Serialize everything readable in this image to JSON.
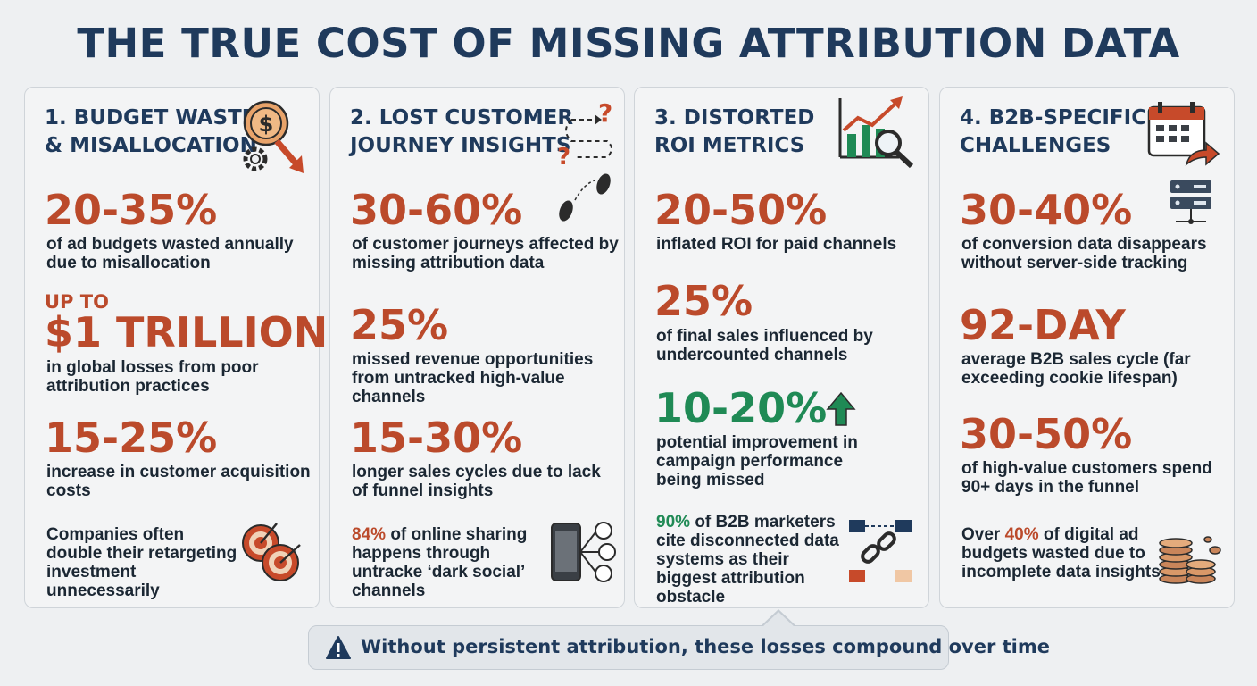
{
  "title": "THE TRUE COST OF MISSING ATTRIBUTION DATA",
  "cards": [
    {
      "title": "1. BUDGET WASTE\n& MISALLOCATION",
      "icon": "coin-down-arrow-icon",
      "stats": [
        {
          "value": "20-35%",
          "desc": "of ad budgets wasted annually due to misallocation"
        },
        {
          "prefix": "UP TO",
          "value": "$1 TRILLION",
          "desc": "in global losses from poor attribution practices"
        },
        {
          "value": "15-25%",
          "desc": "increase in customer acquisition costs"
        }
      ],
      "note": "Companies often double their retargeting investment unnecessarily",
      "note_icon": "target-icon"
    },
    {
      "title": "2. LOST CUSTOMER\nJOURNEY INSIGHTS",
      "icon": "question-path-icon",
      "stats": [
        {
          "value": "30-60%",
          "desc": "of customer journeys affected by missing attribution data"
        },
        {
          "value": "25%",
          "desc": "missed revenue opportunities from untracked high-value channels"
        },
        {
          "value": "15-30%",
          "desc": "longer sales cycles due to lack of funnel insights"
        }
      ],
      "note_highlight": "84%",
      "note": "of online sharing happens through untracke ‘dark social’ channels",
      "note_icon": "phone-share-icon"
    },
    {
      "title": "3. DISTORTED\nROI METRICS",
      "icon": "chart-magnifier-icon",
      "stats": [
        {
          "value": "20-50%",
          "desc": "inflated ROI for paid channels"
        },
        {
          "value": "25%",
          "desc": "of final sales influenced by undercounted channels"
        },
        {
          "value": "10-20%",
          "desc": "potential improvement in campaign performance being missed"
        }
      ],
      "note_highlight": "90%",
      "note": "of B2B marketers cite disconnected data systems as their biggest attribution obstacle",
      "note_icon": "broken-chain-icon"
    },
    {
      "title": "4. B2B-SPECIFIC\nCHALLENGES",
      "icon": "calendar-arrow-icon",
      "stats": [
        {
          "value": "30-40%",
          "desc": "of conversion data disappears without server-side tracking"
        },
        {
          "value": "92-DAY",
          "desc": "average B2B sales cycle (far exceeding cookie lifespan)"
        },
        {
          "value": "30-50%",
          "desc": "of high-value customers spend 90+ days in the funnel"
        }
      ],
      "note_prefix": "Over",
      "note_highlight": "40%",
      "note": "of digital ad budgets wasted due to incomplete data insights",
      "note_icon": "coin-stack-icon"
    }
  ],
  "banner": {
    "text": "Without persistent attribution, these losses compound over time",
    "icon": "warning-icon"
  },
  "colors": {
    "title": "#1f3a5c",
    "stat": "#bb4a2b",
    "positive": "#1f8a55"
  }
}
